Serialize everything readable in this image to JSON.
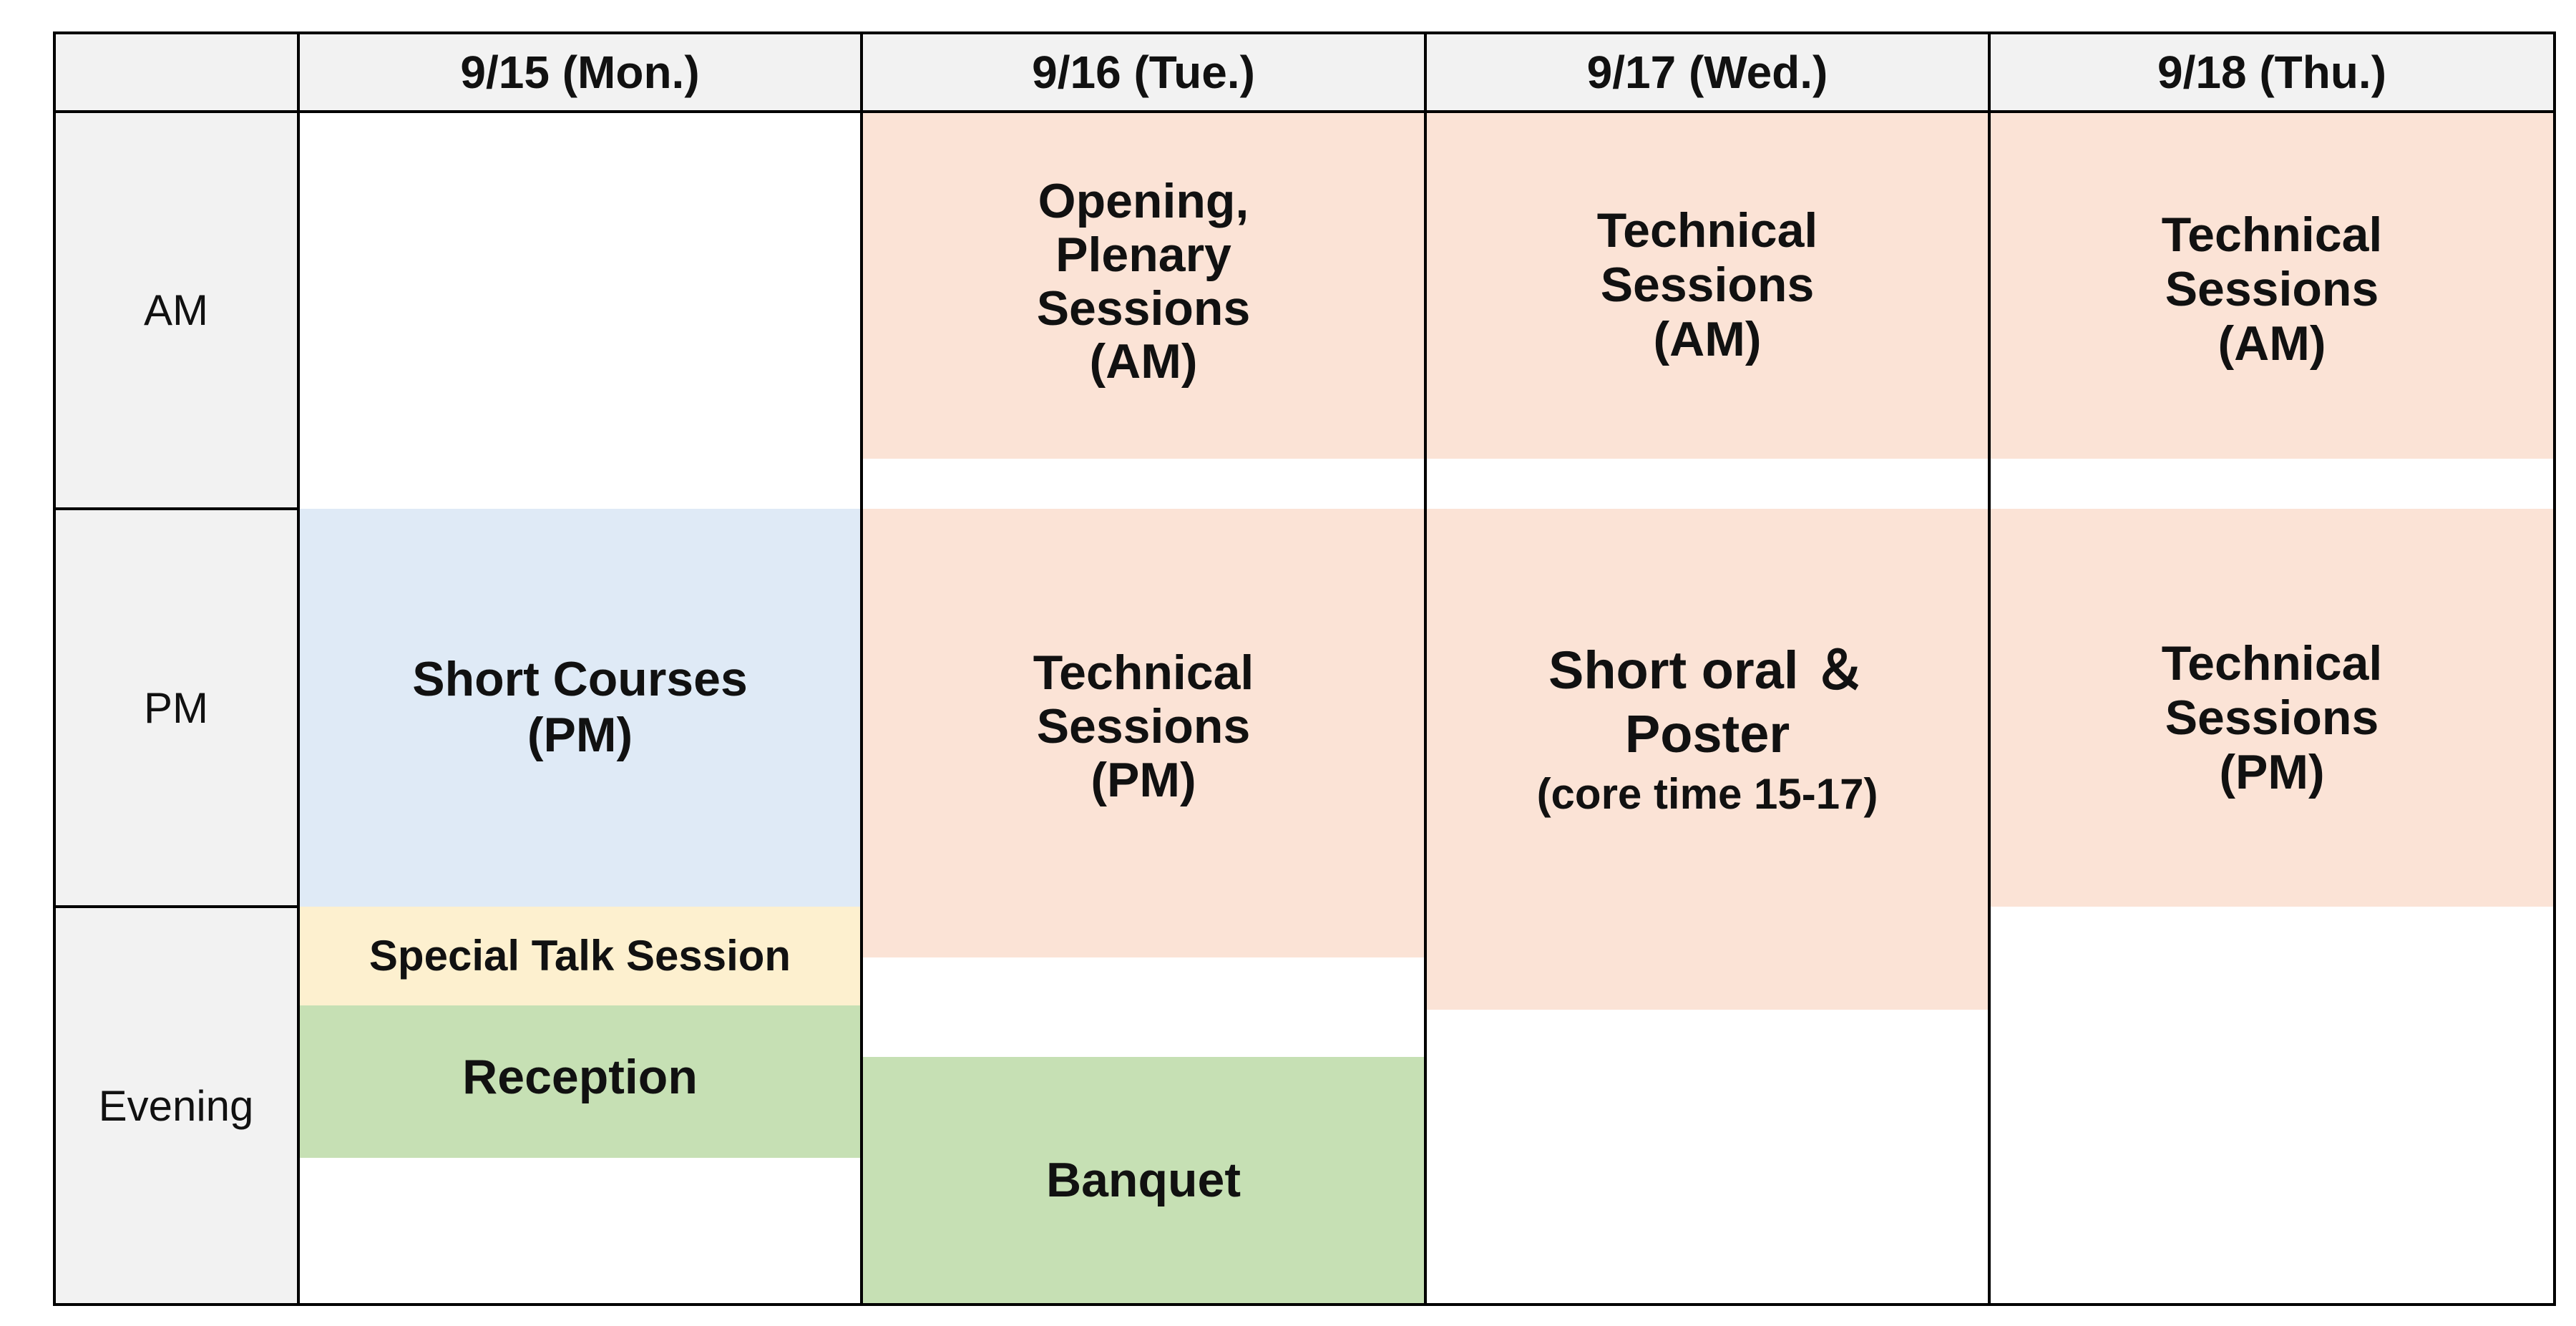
{
  "headers": [
    "9/15 (Mon.)",
    "9/16 (Tue.)",
    "9/17 (Wed.)",
    "9/18 (Thu.)"
  ],
  "rows": [
    "AM",
    "PM",
    "Evening"
  ],
  "events": {
    "mon_short_courses": [
      "Short Courses",
      "(PM)"
    ],
    "mon_special_talk": "Special Talk Session",
    "mon_reception": "Reception",
    "tue_opening": [
      "Opening,",
      "Plenary",
      "Sessions",
      "(AM)"
    ],
    "tue_technical_pm": [
      "Technical",
      "Sessions",
      "(PM)"
    ],
    "tue_banquet": "Banquet",
    "wed_technical_am": [
      "Technical",
      "Sessions",
      "(AM)"
    ],
    "wed_short_oral": [
      "Short oral ＆",
      "Poster"
    ],
    "wed_core_time": "(core time 15-17)",
    "thu_technical_am": [
      "Technical",
      "Sessions",
      "(AM)"
    ],
    "thu_technical_pm": [
      "Technical",
      "Sessions",
      "(PM)"
    ]
  },
  "colors": {
    "header_bg": "#f2f2f2",
    "technical": "#fbe3d6",
    "short_courses": "#dfeaf6",
    "special_talk": "#fdf0cf",
    "social": "#c6e0b4"
  }
}
